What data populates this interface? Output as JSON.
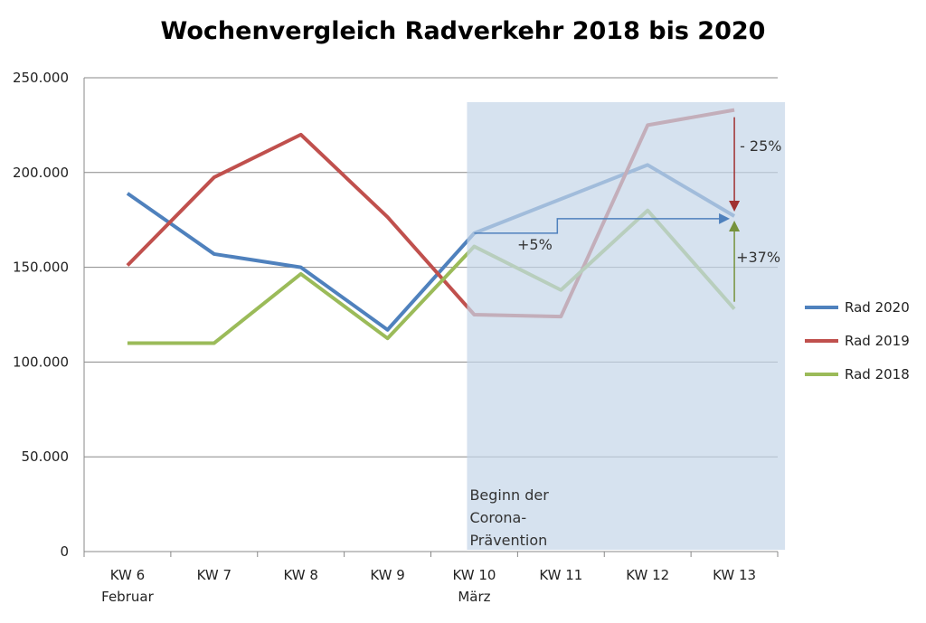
{
  "chart_data": {
    "type": "line",
    "title": "Wochenvergleich Radverkehr 2018 bis 2020",
    "categories": [
      "KW 6",
      "KW 7",
      "KW 8",
      "KW 9",
      "KW 10",
      "KW 11",
      "KW 12",
      "KW 13"
    ],
    "category_sublabels": {
      "KW 6": "Februar",
      "KW 10": "März"
    },
    "ylim": [
      0,
      250000
    ],
    "yticks": [
      0,
      50000,
      100000,
      150000,
      200000,
      250000
    ],
    "ytick_labels": [
      "0",
      "50.000",
      "100.000",
      "150.000",
      "200.000",
      "250.000"
    ],
    "grid": true,
    "legend": "right",
    "series": [
      {
        "name": "Rad 2020",
        "color": "#4f81bd",
        "values": [
          189000,
          157000,
          150000,
          117000,
          168000,
          186000,
          204000,
          177000
        ]
      },
      {
        "name": "Rad 2019",
        "color": "#c0504d",
        "values": [
          151000,
          197500,
          220000,
          176500,
          125000,
          124000,
          225000,
          233000
        ]
      },
      {
        "name": "Rad 2018",
        "color": "#9bbb59",
        "values": [
          110000,
          110000,
          146500,
          112500,
          161000,
          138000,
          180000,
          128000
        ]
      }
    ],
    "shaded_region": {
      "from": "KW 10",
      "to": "KW 13",
      "color": "#c5d5e8",
      "label_lines": [
        "Beginn der",
        "Corona-",
        "Prävention"
      ]
    },
    "annotations": [
      {
        "text": "- 25%",
        "color": "#a03030"
      },
      {
        "text": "+5%",
        "color": "#4f81bd"
      },
      {
        "text": "+37%",
        "color": "#76923c"
      }
    ]
  }
}
